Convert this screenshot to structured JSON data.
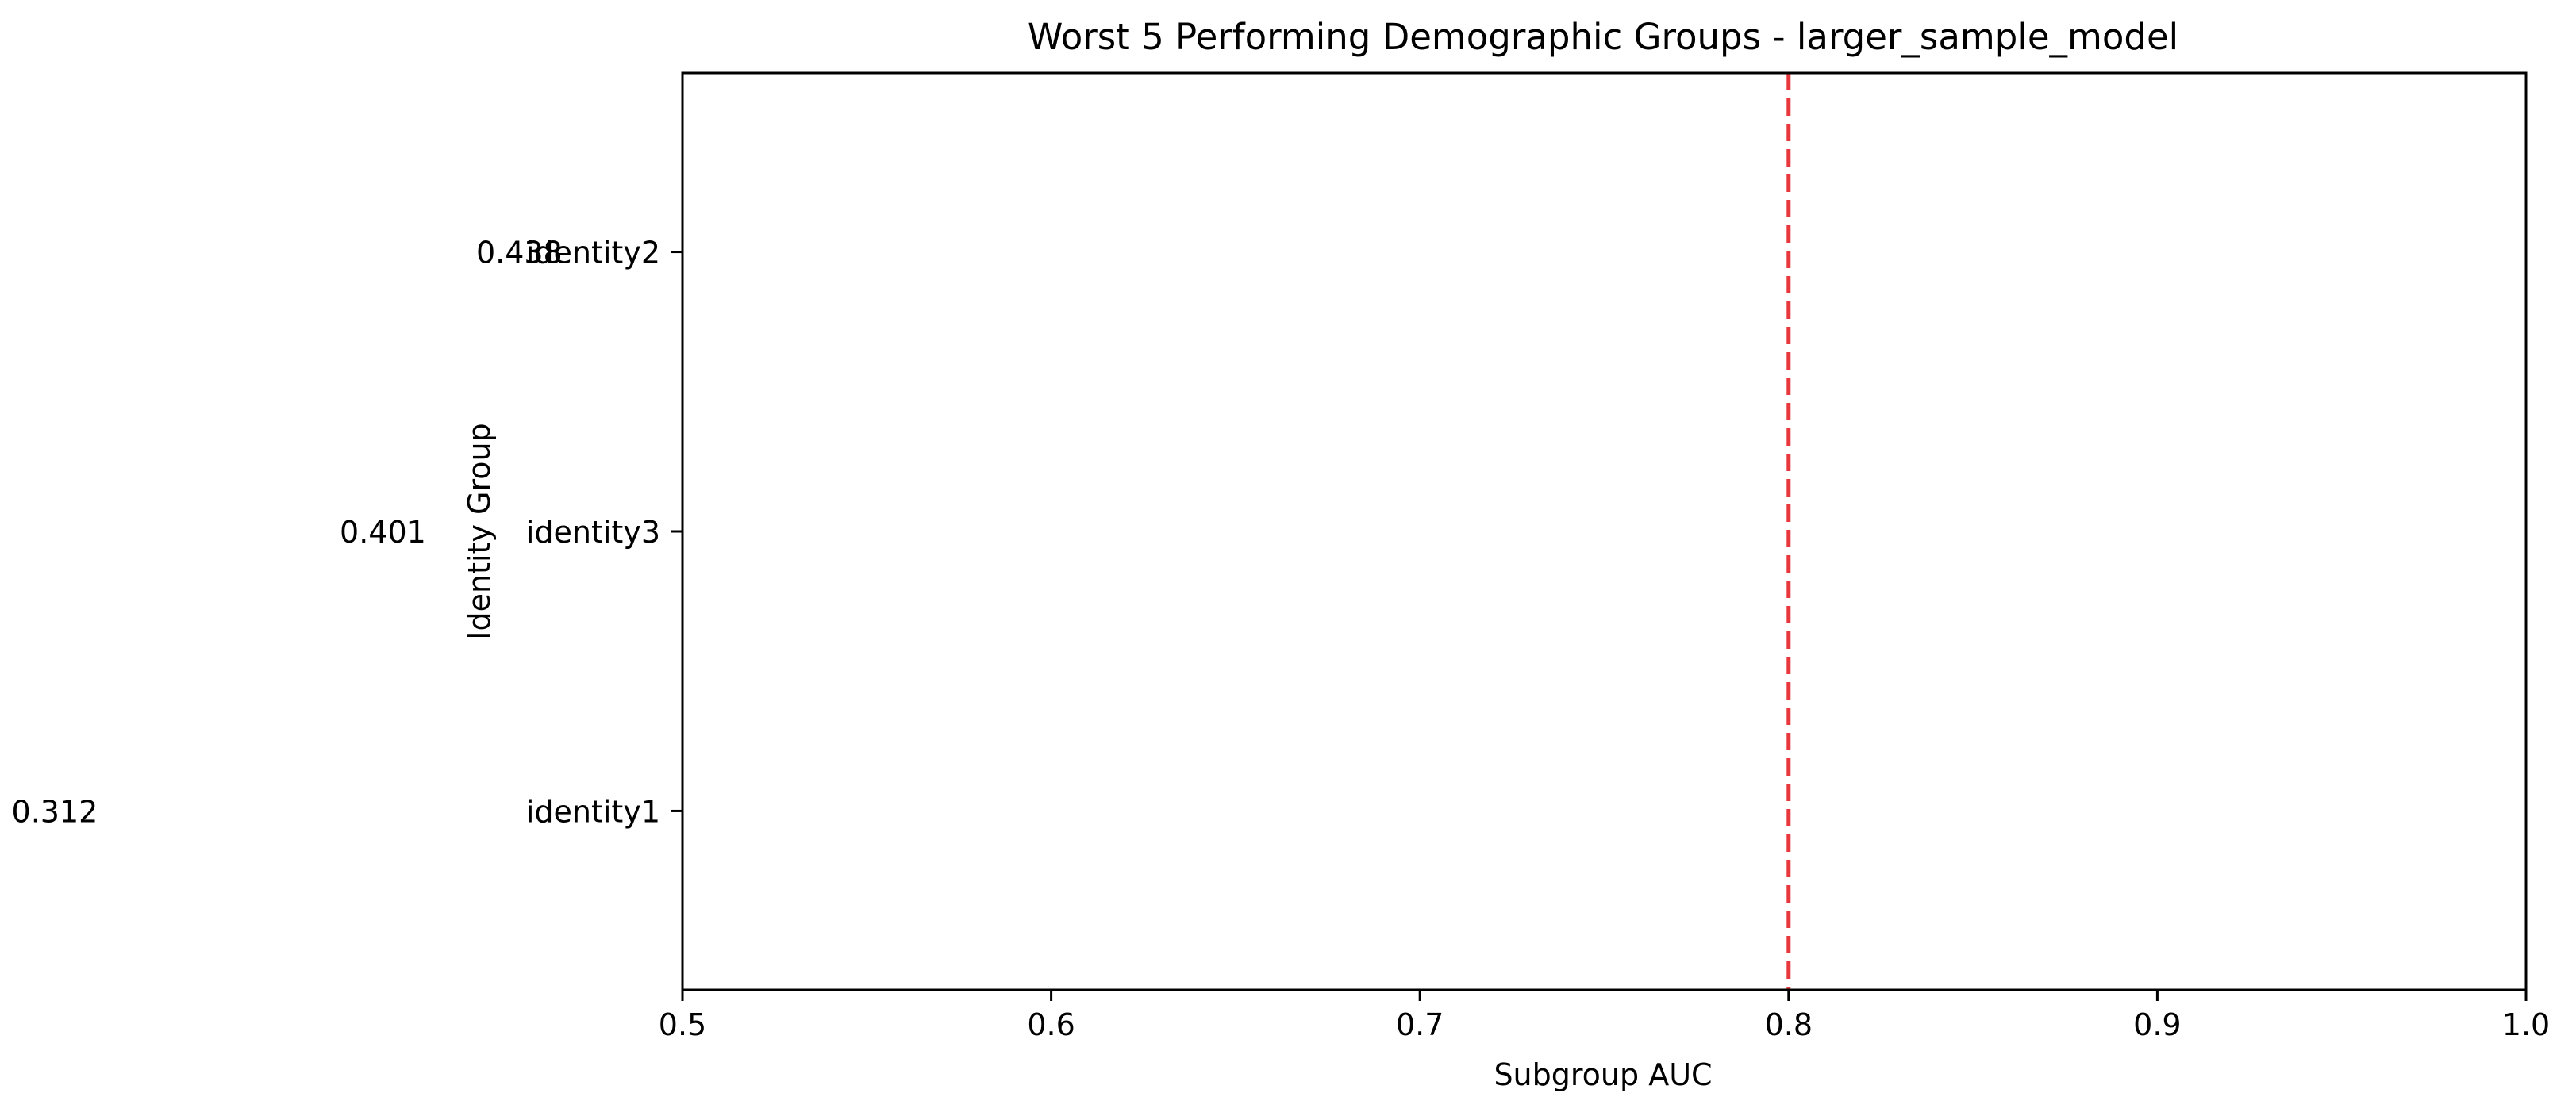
{
  "chart_data": {
    "type": "bar",
    "orientation": "horizontal",
    "title": "Worst 5 Performing Demographic Groups - larger_sample_model",
    "xlabel": "Subgroup AUC",
    "ylabel": "Identity Group",
    "xlim": [
      0.5,
      1.0
    ],
    "xticks": [
      0.5,
      0.6,
      0.7,
      0.8,
      0.9,
      1.0
    ],
    "xtick_labels": [
      "0.5",
      "0.6",
      "0.7",
      "0.8",
      "0.9",
      "1.0"
    ],
    "categories": [
      "identity1",
      "identity3",
      "identity2"
    ],
    "values": [
      0.312,
      0.401,
      0.438
    ],
    "value_labels": [
      "0.312",
      "0.401",
      "0.438"
    ],
    "reference_line": {
      "x": 0.8,
      "color": "#e8383d",
      "style": "dashed"
    },
    "grid": false,
    "legend": "none"
  }
}
